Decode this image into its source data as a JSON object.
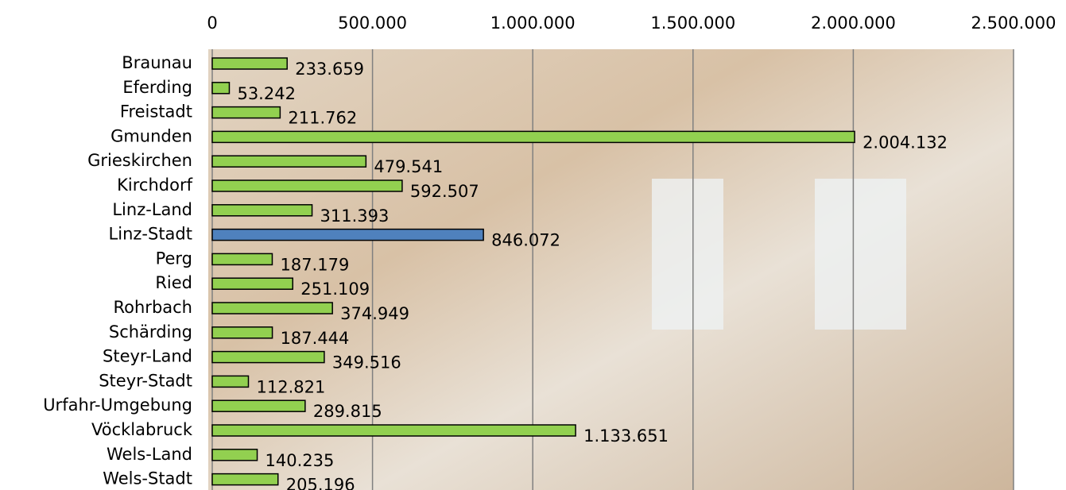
{
  "chart_data": {
    "type": "bar",
    "orientation": "horizontal",
    "categories": [
      "Braunau",
      "Eferding",
      "Freistadt",
      "Gmunden",
      "Grieskirchen",
      "Kirchdorf",
      "Linz-Land",
      "Linz-Stadt",
      "Perg",
      "Ried",
      "Rohrbach",
      "Schärding",
      "Steyr-Land",
      "Steyr-Stadt",
      "Urfahr-Umgebung",
      "Vöcklabruck",
      "Wels-Land",
      "Wels-Stadt"
    ],
    "values": [
      233659,
      53242,
      211762,
      2004132,
      479541,
      592507,
      311393,
      846072,
      187179,
      251109,
      374949,
      187444,
      349516,
      112821,
      289815,
      1133651,
      140235,
      205196
    ],
    "value_labels": [
      "233.659",
      "53.242",
      "211.762",
      "2.004.132",
      "479.541",
      "592.507",
      "311.393",
      "846.072",
      "187.179",
      "251.109",
      "374.949",
      "187.444",
      "349.516",
      "112.821",
      "289.815",
      "1.133.651",
      "140.235",
      "205.196"
    ],
    "colors": [
      "#92d050",
      "#92d050",
      "#92d050",
      "#92d050",
      "#92d050",
      "#92d050",
      "#92d050",
      "#4f81bd",
      "#92d050",
      "#92d050",
      "#92d050",
      "#92d050",
      "#92d050",
      "#92d050",
      "#92d050",
      "#92d050",
      "#92d050",
      "#92d050"
    ],
    "xlim": [
      0,
      2500000
    ],
    "xticks": [
      0,
      {
        "value": 500000,
        "label": "500.000"
      },
      {
        "value": 1000000,
        "label": "1.000.000"
      },
      {
        "value": 1500000,
        "label": "1.500.000"
      },
      {
        "value": 2000000,
        "label": "2.000.000"
      },
      {
        "value": 2500000,
        "label": "2.500.000"
      }
    ],
    "grid": true
  }
}
